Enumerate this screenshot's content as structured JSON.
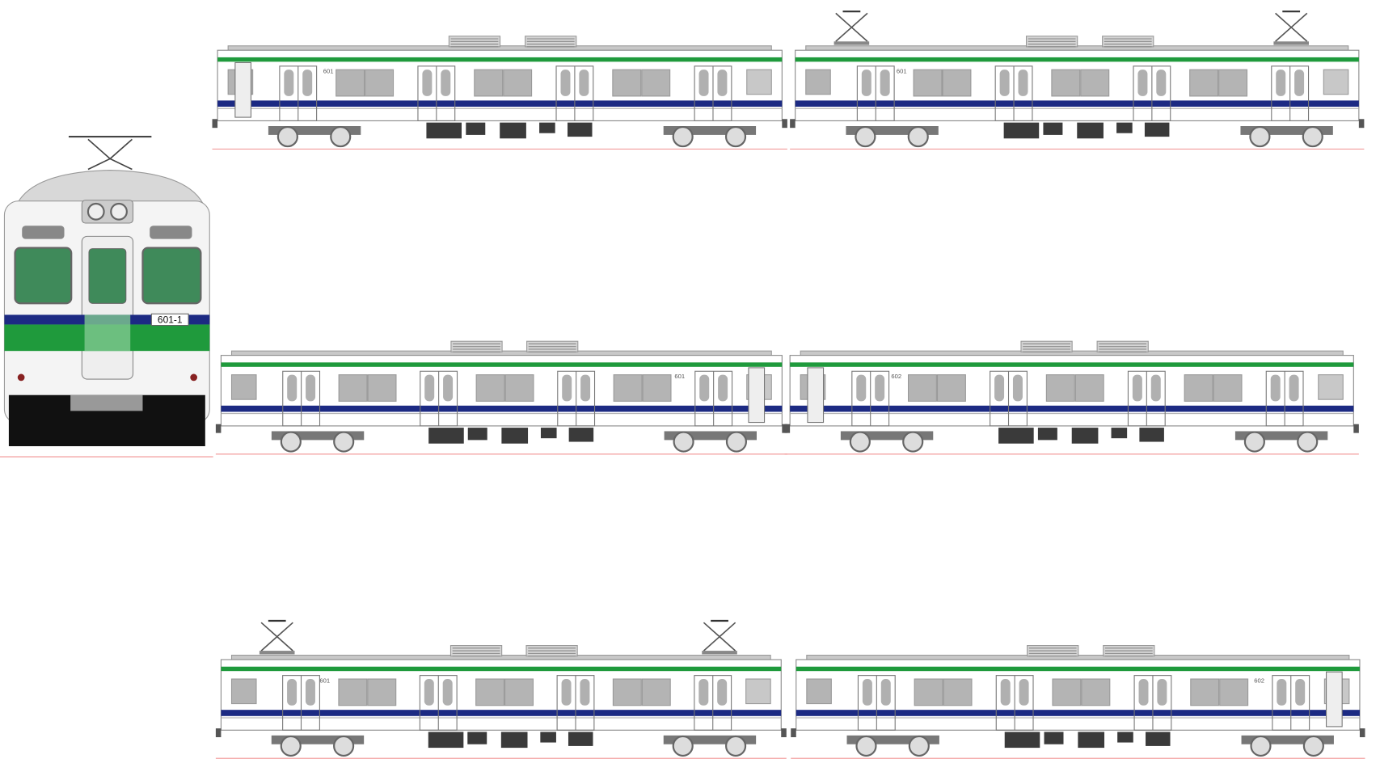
{
  "front": {
    "number": "601-1"
  },
  "rows": [
    {
      "cars": [
        {
          "number": "601"
        },
        {
          "number": "601"
        }
      ]
    },
    {
      "cars": [
        {
          "number": "601"
        },
        {
          "number": "602"
        }
      ]
    },
    {
      "cars": [
        {
          "number": "601"
        },
        {
          "number": "602"
        }
      ]
    }
  ]
}
